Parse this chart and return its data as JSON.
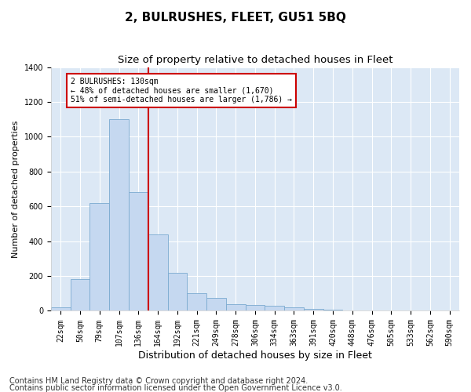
{
  "title": "2, BULRUSHES, FLEET, GU51 5BQ",
  "subtitle": "Size of property relative to detached houses in Fleet",
  "xlabel": "Distribution of detached houses by size in Fleet",
  "ylabel": "Number of detached properties",
  "categories": [
    "22sqm",
    "50sqm",
    "79sqm",
    "107sqm",
    "136sqm",
    "164sqm",
    "192sqm",
    "221sqm",
    "249sqm",
    "278sqm",
    "306sqm",
    "334sqm",
    "363sqm",
    "391sqm",
    "420sqm",
    "448sqm",
    "476sqm",
    "505sqm",
    "533sqm",
    "562sqm",
    "590sqm"
  ],
  "values": [
    20,
    180,
    620,
    1100,
    680,
    440,
    220,
    100,
    75,
    40,
    35,
    30,
    20,
    12,
    8,
    4,
    0,
    3,
    0,
    0,
    0
  ],
  "bar_color": "#c5d8f0",
  "bar_edge_color": "#7aaad0",
  "property_line_x": 4.5,
  "annotation_text": "2 BULRUSHES: 130sqm\n← 48% of detached houses are smaller (1,670)\n51% of semi-detached houses are larger (1,786) →",
  "annotation_box_color": "#ffffff",
  "annotation_box_edge": "#cc0000",
  "vline_color": "#cc0000",
  "ylim": [
    0,
    1400
  ],
  "yticks": [
    0,
    200,
    400,
    600,
    800,
    1000,
    1200,
    1400
  ],
  "footer1": "Contains HM Land Registry data © Crown copyright and database right 2024.",
  "footer2": "Contains public sector information licensed under the Open Government Licence v3.0.",
  "fig_background_color": "#ffffff",
  "ax_background_color": "#dce8f5",
  "grid_color": "#ffffff",
  "title_fontsize": 11,
  "subtitle_fontsize": 9.5,
  "xlabel_fontsize": 9,
  "ylabel_fontsize": 8,
  "tick_fontsize": 7,
  "footer_fontsize": 7
}
